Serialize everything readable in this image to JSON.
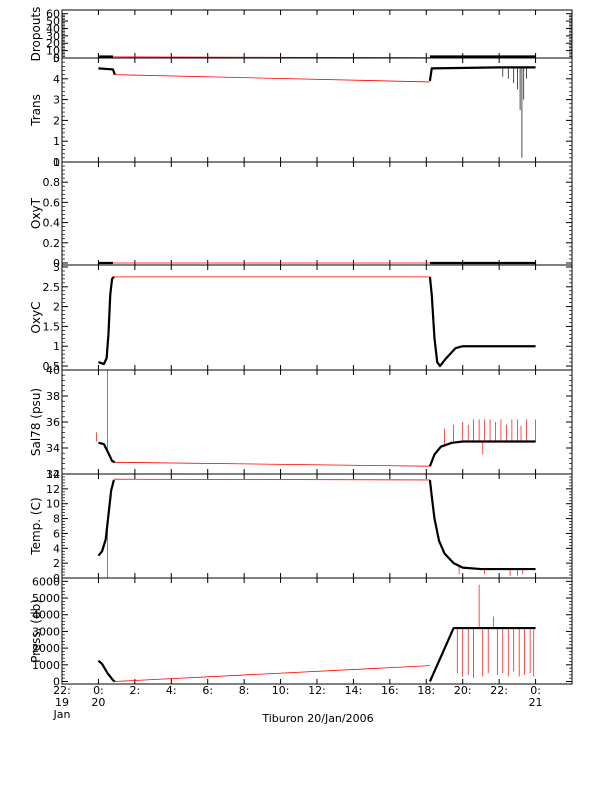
{
  "chart_data": {
    "type": "line",
    "caption": "Tiburon 20/Jan/2006",
    "x_axis": {
      "unit": "hours since 2006-01-20 00:00",
      "range": [
        -2,
        26
      ],
      "ticks": [
        {
          "value": -2,
          "line1": "22:",
          "line2": "19",
          "line3": "Jan"
        },
        {
          "value": 0,
          "line1": "0:",
          "line2": "20",
          "line3": ""
        },
        {
          "value": 2,
          "line1": "2:",
          "line2": "",
          "line3": ""
        },
        {
          "value": 4,
          "line1": "4:",
          "line2": "",
          "line3": ""
        },
        {
          "value": 6,
          "line1": "6:",
          "line2": "",
          "line3": ""
        },
        {
          "value": 8,
          "line1": "8:",
          "line2": "",
          "line3": ""
        },
        {
          "value": 10,
          "line1": "10:",
          "line2": "",
          "line3": ""
        },
        {
          "value": 12,
          "line1": "12:",
          "line2": "",
          "line3": ""
        },
        {
          "value": 14,
          "line1": "14:",
          "line2": "",
          "line3": ""
        },
        {
          "value": 16,
          "line1": "16:",
          "line2": "",
          "line3": ""
        },
        {
          "value": 18,
          "line1": "18:",
          "line2": "",
          "line3": ""
        },
        {
          "value": 20,
          "line1": "20:",
          "line2": "",
          "line3": ""
        },
        {
          "value": 22,
          "line1": "22:",
          "line2": "",
          "line3": ""
        },
        {
          "value": 24,
          "line1": "0:",
          "line2": "21",
          "line3": ""
        }
      ]
    },
    "colors": {
      "data": "#000000",
      "connector": "#ff0000"
    },
    "panels": [
      {
        "key": "dropouts",
        "ylabel": "Dropouts",
        "ylim": [
          0,
          65
        ],
        "yticks": [
          0,
          10,
          20,
          30,
          40,
          50,
          60
        ],
        "black": [
          [
            [
              0.0,
              2.0
            ],
            [
              0.8,
              2.0
            ]
          ],
          [
            [
              18.2,
              2.0
            ],
            [
              24.0,
              2.0
            ]
          ]
        ],
        "red": [
          [
            [
              0.8,
              1.5
            ],
            [
              18.2,
              0.5
            ]
          ]
        ],
        "spikes": []
      },
      {
        "key": "trans",
        "ylabel": "Trans",
        "ylim": [
          0,
          5
        ],
        "yticks": [
          0,
          1,
          2,
          3,
          4,
          5
        ],
        "black": [
          [
            [
              0.0,
              4.5
            ],
            [
              0.8,
              4.45
            ],
            [
              0.9,
              4.2
            ]
          ],
          [
            [
              18.2,
              3.9
            ],
            [
              18.3,
              4.5
            ],
            [
              22.0,
              4.55
            ],
            [
              24.0,
              4.55
            ]
          ]
        ],
        "red": [
          [
            [
              0.9,
              4.2
            ],
            [
              18.2,
              3.85
            ]
          ]
        ],
        "spikes": [
          [
            22.2,
            4.1
          ],
          [
            22.5,
            4.0
          ],
          [
            22.8,
            3.8
          ],
          [
            23.0,
            3.5
          ],
          [
            23.15,
            2.5
          ],
          [
            23.25,
            0.2
          ],
          [
            23.35,
            3.0
          ],
          [
            23.5,
            4.0
          ]
        ]
      },
      {
        "key": "oxyt",
        "ylabel": "OxyT",
        "ylim": [
          -0.02,
          1.0
        ],
        "yticks": [
          0.0,
          0.2,
          0.4,
          0.6,
          0.8,
          1.0
        ],
        "black": [
          [
            [
              0.0,
              0.0
            ],
            [
              0.8,
              0.0
            ]
          ],
          [
            [
              18.2,
              0.0
            ],
            [
              24.0,
              0.0
            ]
          ]
        ],
        "red": [
          [
            [
              0.8,
              0.0
            ],
            [
              18.2,
              0.0
            ]
          ]
        ],
        "spikes": []
      },
      {
        "key": "oxyc",
        "ylabel": "OxyC",
        "ylim": [
          0.4,
          3.05
        ],
        "yticks": [
          0.5,
          1.0,
          1.5,
          2.0,
          2.5,
          3.0
        ],
        "black": [
          [
            [
              0.0,
              0.6
            ],
            [
              0.3,
              0.55
            ],
            [
              0.45,
              0.7
            ],
            [
              0.55,
              1.3
            ],
            [
              0.65,
              2.3
            ],
            [
              0.75,
              2.7
            ],
            [
              0.85,
              2.75
            ]
          ],
          [
            [
              18.2,
              2.75
            ],
            [
              18.3,
              2.3
            ],
            [
              18.45,
              1.2
            ],
            [
              18.6,
              0.6
            ],
            [
              18.75,
              0.5
            ],
            [
              19.1,
              0.7
            ],
            [
              19.6,
              0.95
            ],
            [
              20.0,
              1.0
            ],
            [
              24.0,
              1.0
            ]
          ]
        ],
        "red": [
          [
            [
              0.85,
              2.75
            ],
            [
              18.2,
              2.75
            ]
          ]
        ],
        "spikes": []
      },
      {
        "key": "sal78",
        "ylabel": "Sal78 (psu)",
        "ylim": [
          32,
          40
        ],
        "yticks": [
          32,
          34,
          36,
          38,
          40
        ],
        "black": [
          [
            [
              0.0,
              34.4
            ],
            [
              0.3,
              34.3
            ],
            [
              0.55,
              33.6
            ],
            [
              0.75,
              33.0
            ],
            [
              0.9,
              32.9
            ]
          ],
          [
            [
              18.2,
              32.6
            ],
            [
              18.45,
              33.5
            ],
            [
              18.8,
              34.1
            ],
            [
              19.4,
              34.4
            ],
            [
              20.0,
              34.5
            ],
            [
              24.0,
              34.5
            ]
          ]
        ],
        "red": [
          [
            [
              0.9,
              32.9
            ],
            [
              18.2,
              32.6
            ]
          ]
        ],
        "spikes": [
          [
            -0.1,
            35.2
          ],
          [
            0.5,
            40.0
          ],
          [
            19.0,
            35.5
          ],
          [
            19.5,
            35.8
          ],
          [
            20.0,
            36.0
          ],
          [
            20.3,
            35.8
          ],
          [
            20.6,
            36.2
          ],
          [
            20.9,
            36.2
          ],
          [
            21.1,
            33.5
          ],
          [
            21.2,
            36.2
          ],
          [
            21.5,
            36.2
          ],
          [
            21.8,
            36.0
          ],
          [
            22.1,
            36.2
          ],
          [
            22.4,
            35.8
          ],
          [
            22.7,
            36.2
          ],
          [
            23.0,
            36.2
          ],
          [
            23.2,
            35.7
          ],
          [
            23.5,
            36.2
          ],
          [
            24.0,
            36.2
          ]
        ]
      },
      {
        "key": "temp",
        "ylabel": "Temp. (C)",
        "ylim": [
          0,
          14
        ],
        "yticks": [
          0,
          2,
          4,
          6,
          8,
          10,
          12,
          14
        ],
        "black": [
          [
            [
              0.0,
              3.0
            ],
            [
              0.2,
              3.6
            ],
            [
              0.4,
              5.2
            ],
            [
              0.55,
              8.5
            ],
            [
              0.7,
              11.8
            ],
            [
              0.85,
              13.2
            ]
          ],
          [
            [
              18.2,
              13.2
            ],
            [
              18.3,
              11.0
            ],
            [
              18.45,
              8.0
            ],
            [
              18.7,
              5.0
            ],
            [
              19.0,
              3.3
            ],
            [
              19.5,
              2.0
            ],
            [
              20.0,
              1.4
            ],
            [
              21.0,
              1.2
            ],
            [
              24.0,
              1.2
            ]
          ]
        ],
        "red": [
          [
            [
              0.85,
              13.3
            ],
            [
              18.2,
              13.2
            ]
          ]
        ],
        "spikes": [
          [
            0.5,
            0.0
          ],
          [
            19.8,
            0.5
          ],
          [
            21.2,
            0.5
          ],
          [
            22.6,
            0.3
          ],
          [
            23.0,
            0.3
          ],
          [
            23.3,
            0.5
          ]
        ]
      },
      {
        "key": "press",
        "ylabel": "Press. (db)",
        "ylim": [
          -150,
          6200
        ],
        "yticks": [
          0,
          1000,
          2000,
          3000,
          4000,
          5000,
          6000
        ],
        "black": [
          [
            [
              0.0,
              1250
            ],
            [
              0.2,
              1050
            ],
            [
              0.5,
              500
            ],
            [
              0.8,
              80
            ],
            [
              0.9,
              0
            ]
          ],
          [
            [
              18.2,
              0
            ],
            [
              19.5,
              3200
            ],
            [
              24.0,
              3200
            ]
          ]
        ],
        "red": [
          [
            [
              0.9,
              0
            ],
            [
              18.2,
              950
            ]
          ]
        ],
        "spikes": [
          [
            19.7,
            500
          ],
          [
            20.0,
            300
          ],
          [
            20.3,
            400
          ],
          [
            20.6,
            200
          ],
          [
            20.9,
            5800
          ],
          [
            21.1,
            300
          ],
          [
            21.4,
            500
          ],
          [
            21.7,
            3900
          ],
          [
            21.9,
            400
          ],
          [
            22.2,
            500
          ],
          [
            22.5,
            300
          ],
          [
            22.8,
            600
          ],
          [
            23.1,
            300
          ],
          [
            23.4,
            400
          ],
          [
            23.7,
            500
          ],
          [
            23.9,
            300
          ]
        ]
      }
    ]
  }
}
